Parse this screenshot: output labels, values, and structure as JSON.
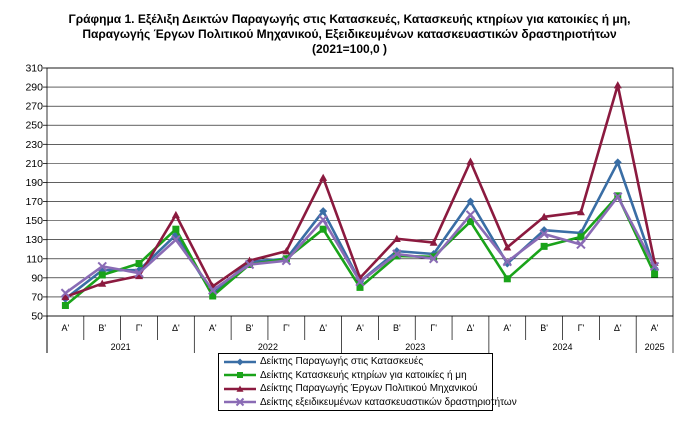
{
  "chart_data": {
    "type": "line",
    "title_lines": [
      "Γράφημα 1. Εξέλιξη  Δεικτών Παραγωγής στις Κατασκευές,  Κατασκευής κτηρίων για κατοικίες ή  μη,",
      "Παραγωγής Έργων Πολιτικού Μηχανικού,  Εξειδικευμένων κατασκευαστικών δραστηριοτήτων",
      "(2021=100,0 )"
    ],
    "quarters": [
      "Α'",
      "Β'",
      "Γ'",
      "Δ'",
      "Α'",
      "Β'",
      "Γ'",
      "Δ'",
      "Α'",
      "Β'",
      "Γ'",
      "Δ'",
      "Α'",
      "Β'",
      "Γ'",
      "Δ'",
      "Α'"
    ],
    "years": [
      {
        "label": "2021",
        "span": 4
      },
      {
        "label": "2022",
        "span": 4
      },
      {
        "label": "2023",
        "span": 4
      },
      {
        "label": "2024",
        "span": 4
      },
      {
        "label": "2025",
        "span": 1
      }
    ],
    "ylim": [
      50,
      310
    ],
    "yticks": [
      50,
      70,
      90,
      110,
      130,
      150,
      170,
      190,
      210,
      230,
      250,
      270,
      290,
      310
    ],
    "grid": true,
    "legend_position": "bottom",
    "series": [
      {
        "name": "Δείκτης Παραγωγής στις Κατασκευές",
        "color": "#3a6ea5",
        "marker": "diamond",
        "values": [
          68,
          98,
          98,
          135,
          73,
          107,
          110,
          160,
          86,
          118,
          115,
          170,
          105,
          140,
          137,
          211,
          100
        ]
      },
      {
        "name": "Δείκτης Κατασκευής κτηρίων για κατοικίες ή μη",
        "color": "#1aa31a",
        "marker": "square",
        "values": [
          61,
          93,
          105,
          141,
          71,
          104,
          110,
          141,
          80,
          113,
          112,
          149,
          89,
          123,
          133,
          176,
          94
        ]
      },
      {
        "name": "Δείκτης Παραγωγής Έργων Πολιτικού Μηχανικού",
        "color": "#8b1a3f",
        "marker": "triangle",
        "values": [
          70,
          84,
          92,
          156,
          81,
          108,
          118,
          195,
          90,
          131,
          127,
          212,
          122,
          154,
          159,
          292,
          106
        ]
      },
      {
        "name": "Δείκτης εξειδικευμένων κατασκευαστικών δραστηριοτήτων",
        "color": "#8a6bb5",
        "marker": "x",
        "values": [
          74,
          102,
          95,
          130,
          77,
          104,
          108,
          151,
          86,
          115,
          110,
          156,
          107,
          136,
          125,
          175,
          102
        ]
      }
    ]
  }
}
